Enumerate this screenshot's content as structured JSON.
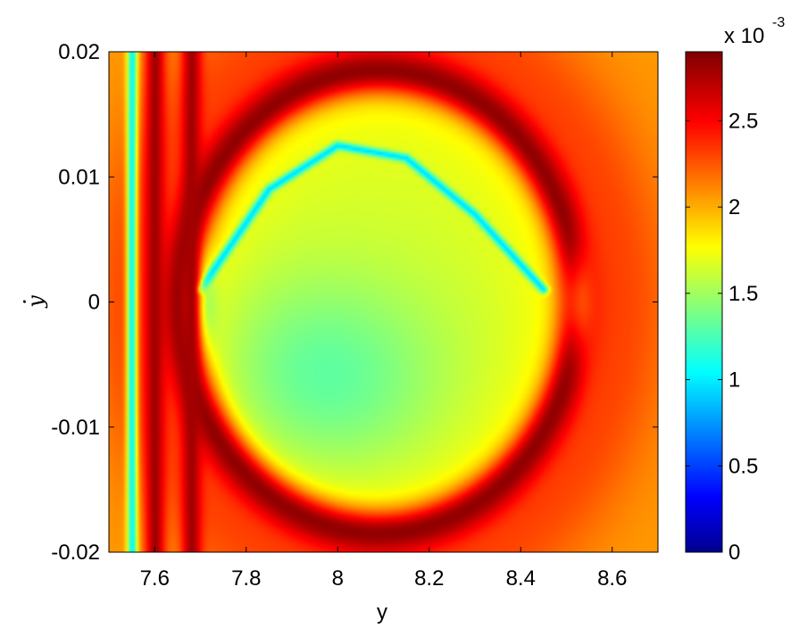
{
  "chart_data": {
    "type": "heatmap",
    "title": "",
    "xlabel": "y",
    "ylabel": "y",
    "ylabel_dot": "·",
    "xlim": [
      7.5,
      8.7
    ],
    "ylim": [
      -0.02,
      0.02
    ],
    "xticks": [
      7.6,
      7.8,
      8.0,
      8.2,
      8.4,
      8.6
    ],
    "xtick_labels": [
      "7.6",
      "7.8",
      "8",
      "8.2",
      "8.4",
      "8.6"
    ],
    "yticks": [
      -0.02,
      -0.01,
      0,
      0.01,
      0.02
    ],
    "ytick_labels": [
      "-0.02",
      "-0.01",
      "0",
      "0.01",
      "0.02"
    ],
    "colormap": "jet",
    "colorbar": {
      "range": [
        0,
        0.0029
      ],
      "ticks": [
        0,
        0.5,
        1,
        1.5,
        2,
        2.5
      ],
      "tick_labels": [
        "0",
        "0.5",
        "1",
        "1.5",
        "2",
        "2.5"
      ],
      "multiplier_base": "x 10",
      "multiplier_exp": "-3"
    },
    "features": {
      "background_level": 2.1,
      "inner_disk_center": [
        8.0,
        0.0
      ],
      "inner_disk_level": 1.7,
      "inner_lobe_low_center": [
        7.97,
        -0.006
      ],
      "inner_lobe_low_level": 1.35,
      "ring_center": [
        8.09,
        0.0
      ],
      "ring_semi_axes": [
        0.435,
        0.0185
      ],
      "ring_level": 2.85,
      "separatrix_points": [
        [
          7.7,
          0.0
        ],
        [
          8.53,
          0.0
        ]
      ],
      "arc_blue": [
        [
          7.7,
          0.001
        ],
        [
          7.85,
          0.009
        ],
        [
          8.0,
          0.0125
        ],
        [
          8.15,
          0.0115
        ],
        [
          8.3,
          0.007
        ],
        [
          8.45,
          0.001
        ]
      ],
      "left_bands": [
        7.55,
        7.6,
        7.68
      ]
    }
  }
}
